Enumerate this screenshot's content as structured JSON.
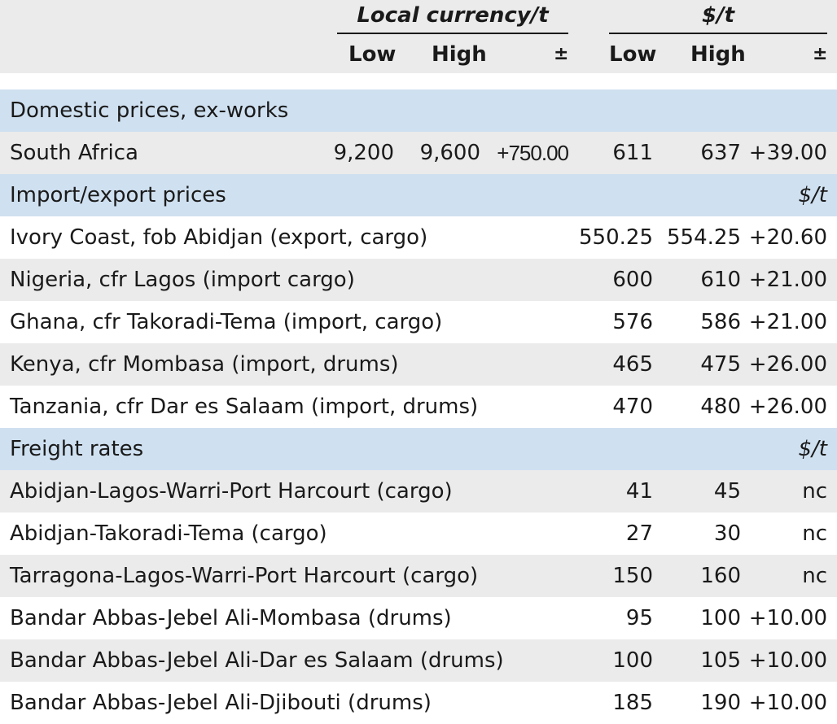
{
  "header": {
    "local_group": "Local currency/t",
    "usd_group": "$/t",
    "low": "Low",
    "high": "High",
    "change": "±"
  },
  "rows": [
    {
      "type": "section",
      "label": "Domestic prices, ex-works",
      "unit": ""
    },
    {
      "type": "data",
      "label": "South Africa",
      "local_low": "9,200",
      "local_high": "9,600",
      "local_change": "+750.00",
      "usd_low": "611",
      "usd_high": "637",
      "usd_change": "+39.00"
    },
    {
      "type": "section",
      "label": "Import/export prices",
      "unit": "$/t"
    },
    {
      "type": "data",
      "label": "Ivory Coast, fob Abidjan (export, cargo)",
      "local_low": "",
      "local_high": "",
      "local_change": "",
      "usd_low": "550.25",
      "usd_high": "554.25",
      "usd_change": "+20.60"
    },
    {
      "type": "data",
      "label": "Nigeria, cfr Lagos (import cargo)",
      "local_low": "",
      "local_high": "",
      "local_change": "",
      "usd_low": "600",
      "usd_high": "610",
      "usd_change": "+21.00"
    },
    {
      "type": "data",
      "label": "Ghana, cfr Takoradi-Tema (import, cargo)",
      "local_low": "",
      "local_high": "",
      "local_change": "",
      "usd_low": "576",
      "usd_high": "586",
      "usd_change": "+21.00"
    },
    {
      "type": "data",
      "label": "Kenya, cfr Mombasa (import, drums)",
      "local_low": "",
      "local_high": "",
      "local_change": "",
      "usd_low": "465",
      "usd_high": "475",
      "usd_change": "+26.00"
    },
    {
      "type": "data",
      "label": "Tanzania, cfr Dar es Salaam (import, drums)",
      "local_low": "",
      "local_high": "",
      "local_change": "",
      "usd_low": "470",
      "usd_high": "480",
      "usd_change": "+26.00"
    },
    {
      "type": "section",
      "label": "Freight rates",
      "unit": "$/t"
    },
    {
      "type": "data",
      "label": "Abidjan-Lagos-Warri-Port Harcourt (cargo)",
      "local_low": "",
      "local_high": "",
      "local_change": "",
      "usd_low": "41",
      "usd_high": "45",
      "usd_change": "nc"
    },
    {
      "type": "data",
      "label": "Abidjan-Takoradi-Tema (cargo)",
      "local_low": "",
      "local_high": "",
      "local_change": "",
      "usd_low": "27",
      "usd_high": "30",
      "usd_change": "nc"
    },
    {
      "type": "data",
      "label": "Tarragona-Lagos-Warri-Port Harcourt (cargo)",
      "local_low": "",
      "local_high": "",
      "local_change": "",
      "usd_low": "150",
      "usd_high": "160",
      "usd_change": "nc"
    },
    {
      "type": "data",
      "label": "Bandar Abbas-Jebel Ali-Mombasa (drums)",
      "local_low": "",
      "local_high": "",
      "local_change": "",
      "usd_low": "95",
      "usd_high": "100",
      "usd_change": "+10.00"
    },
    {
      "type": "data",
      "label": "Bandar Abbas-Jebel Ali-Dar es Salaam (drums)",
      "local_low": "",
      "local_high": "",
      "local_change": "",
      "usd_low": "100",
      "usd_high": "105",
      "usd_change": "+10.00"
    },
    {
      "type": "data",
      "label": "Bandar Abbas-Jebel Ali-Djibouti (drums)",
      "local_low": "",
      "local_high": "",
      "local_change": "",
      "usd_low": "185",
      "usd_high": "190",
      "usd_change": "+10.00"
    }
  ]
}
